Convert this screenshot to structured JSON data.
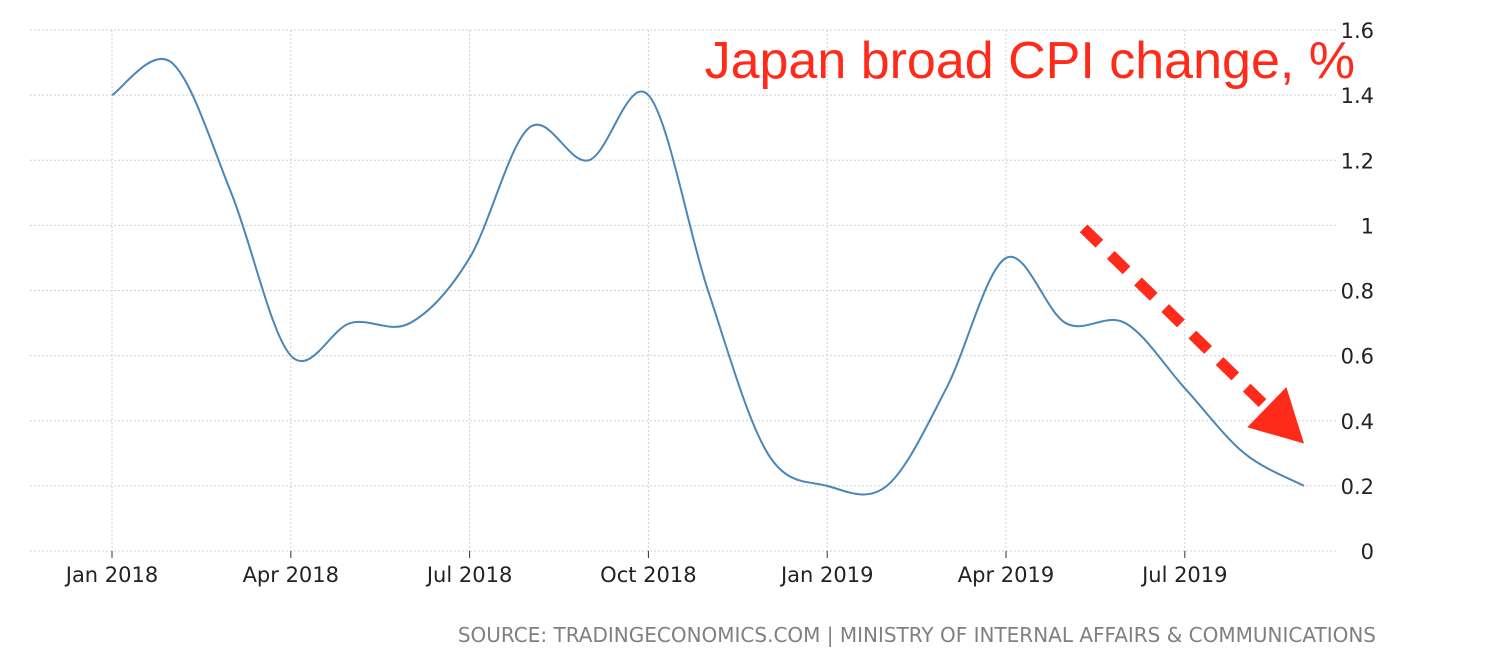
{
  "chart_data": {
    "type": "line",
    "title": "Japan broad CPI change, %",
    "source": "SOURCE: TRADINGECONOMICS.COM | MINISTRY OF INTERNAL AFFAIRS & COMMUNICATIONS",
    "x": [
      "2018-01",
      "2018-02",
      "2018-03",
      "2018-04",
      "2018-05",
      "2018-06",
      "2018-07",
      "2018-08",
      "2018-09",
      "2018-10",
      "2018-11",
      "2018-12",
      "2019-01",
      "2019-02",
      "2019-03",
      "2019-04",
      "2019-05",
      "2019-06",
      "2019-07",
      "2019-08",
      "2019-09"
    ],
    "x_tick_labels": [
      "Jan 2018",
      "Apr 2018",
      "Jul 2018",
      "Oct 2018",
      "Jan 2019",
      "Apr 2019",
      "Jul 2019"
    ],
    "x_tick_values": [
      "2018-01",
      "2018-04",
      "2018-07",
      "2018-10",
      "2019-01",
      "2019-04",
      "2019-07"
    ],
    "series": [
      {
        "values": [
          1.4,
          1.5,
          1.1,
          0.6,
          0.7,
          0.7,
          0.9,
          1.3,
          1.2,
          1.4,
          0.8,
          0.3,
          0.2,
          0.2,
          0.5,
          0.9,
          0.7,
          0.7,
          0.5,
          0.3,
          0.2
        ]
      }
    ],
    "y_tick_labels": [
      "0",
      "0.2",
      "0.4",
      "0.6",
      "0.8",
      "1",
      "1.2",
      "1.4",
      "1.6"
    ],
    "ylim": [
      0,
      1.6
    ],
    "y_axis_position": "right",
    "grid": true,
    "legend": "none",
    "annotations": [
      {
        "type": "arrow",
        "style": "dashed",
        "from": [
          "2019-05",
          1.0
        ],
        "to": [
          "2019-09",
          0.33
        ]
      }
    ],
    "colors": {
      "line": "#4a86b8",
      "title": "#ff2a1a",
      "arrow": "#ff2a1a",
      "grid": "#d0d0d0",
      "source": "#808080"
    }
  }
}
